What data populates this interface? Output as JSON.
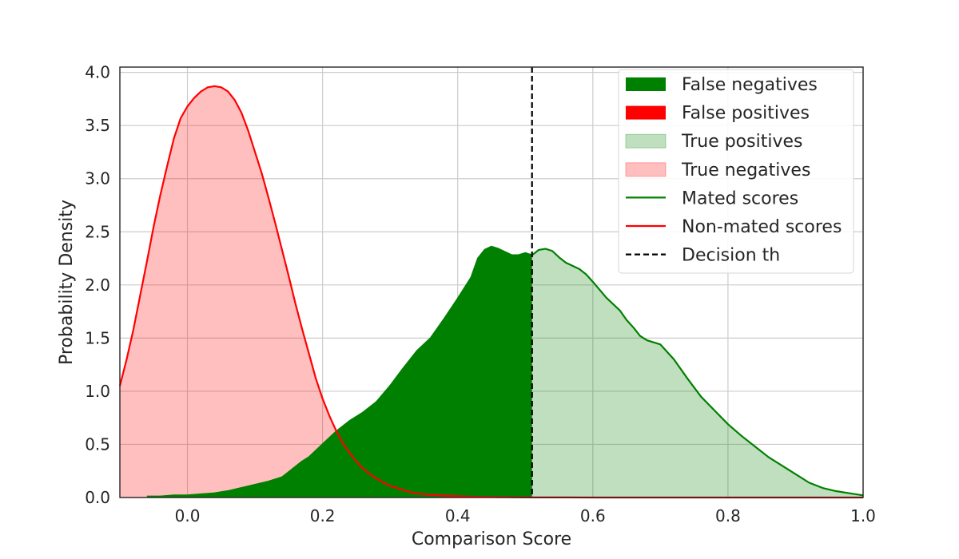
{
  "chart_data": {
    "type": "area",
    "title": "",
    "xlabel": "Comparison Score",
    "ylabel": "Probability Density",
    "xlim": [
      -0.1,
      1.0
    ],
    "ylim": [
      0.0,
      4.05
    ],
    "grid": true,
    "x_ticks": [
      0.0,
      0.2,
      0.4,
      0.6,
      0.8,
      1.0
    ],
    "x_tick_labels": [
      "0.0",
      "0.2",
      "0.4",
      "0.6",
      "0.8",
      "1.0"
    ],
    "y_ticks": [
      0.0,
      0.5,
      1.0,
      1.5,
      2.0,
      2.5,
      3.0,
      3.5,
      4.0
    ],
    "y_tick_labels": [
      "0.0",
      "0.5",
      "1.0",
      "1.5",
      "2.0",
      "2.5",
      "3.0",
      "3.5",
      "4.0"
    ],
    "threshold": 0.51,
    "legend_position": "top-right",
    "legend": [
      {
        "label": "False negatives",
        "kind": "patch",
        "color": "#008000",
        "alpha": 1.0
      },
      {
        "label": "False positives",
        "kind": "patch",
        "color": "#ff0000",
        "alpha": 1.0
      },
      {
        "label": "True positives",
        "kind": "patch",
        "color": "#008000",
        "alpha": 0.25
      },
      {
        "label": "True negatives",
        "kind": "patch",
        "color": "#ff0000",
        "alpha": 0.25
      },
      {
        "label": "Mated scores",
        "kind": "line",
        "color": "#008000",
        "dash": "solid"
      },
      {
        "label": "Non-mated scores",
        "kind": "line",
        "color": "#ff0000",
        "dash": "solid"
      },
      {
        "label": "Decision th",
        "kind": "line",
        "color": "#000000",
        "dash": "dashed"
      }
    ],
    "series": [
      {
        "name": "Mated scores",
        "color": "#008000",
        "x": [
          -0.06,
          -0.04,
          -0.02,
          0.0,
          0.02,
          0.04,
          0.06,
          0.08,
          0.1,
          0.12,
          0.14,
          0.15,
          0.16,
          0.17,
          0.18,
          0.19,
          0.2,
          0.22,
          0.24,
          0.26,
          0.28,
          0.3,
          0.32,
          0.34,
          0.36,
          0.38,
          0.4,
          0.42,
          0.43,
          0.44,
          0.45,
          0.46,
          0.47,
          0.48,
          0.49,
          0.5,
          0.51,
          0.52,
          0.53,
          0.54,
          0.55,
          0.56,
          0.57,
          0.58,
          0.59,
          0.6,
          0.62,
          0.64,
          0.65,
          0.66,
          0.67,
          0.68,
          0.7,
          0.72,
          0.74,
          0.76,
          0.78,
          0.8,
          0.82,
          0.84,
          0.86,
          0.88,
          0.9,
          0.92,
          0.94,
          0.96,
          0.98,
          1.0
        ],
        "y": [
          0.01,
          0.01,
          0.02,
          0.02,
          0.03,
          0.04,
          0.06,
          0.09,
          0.12,
          0.15,
          0.19,
          0.24,
          0.29,
          0.34,
          0.38,
          0.44,
          0.5,
          0.62,
          0.72,
          0.8,
          0.9,
          1.05,
          1.22,
          1.38,
          1.5,
          1.68,
          1.87,
          2.07,
          2.25,
          2.33,
          2.36,
          2.34,
          2.31,
          2.28,
          2.28,
          2.3,
          2.28,
          2.33,
          2.34,
          2.32,
          2.26,
          2.21,
          2.18,
          2.15,
          2.1,
          2.03,
          1.88,
          1.76,
          1.67,
          1.6,
          1.52,
          1.48,
          1.44,
          1.3,
          1.12,
          0.95,
          0.82,
          0.69,
          0.58,
          0.48,
          0.38,
          0.3,
          0.22,
          0.14,
          0.09,
          0.06,
          0.04,
          0.02
        ]
      },
      {
        "name": "Non-mated scores",
        "color": "#ff0000",
        "x": [
          -0.1,
          -0.09,
          -0.08,
          -0.07,
          -0.06,
          -0.05,
          -0.04,
          -0.03,
          -0.02,
          -0.01,
          0.0,
          0.01,
          0.02,
          0.03,
          0.04,
          0.05,
          0.06,
          0.07,
          0.08,
          0.09,
          0.1,
          0.11,
          0.12,
          0.13,
          0.14,
          0.15,
          0.16,
          0.17,
          0.18,
          0.19,
          0.2,
          0.21,
          0.22,
          0.23,
          0.24,
          0.25,
          0.26,
          0.27,
          0.28,
          0.29,
          0.3,
          0.31,
          0.32,
          0.33,
          0.34,
          0.35,
          0.36,
          0.38,
          0.4,
          0.42,
          0.44,
          0.46,
          0.48,
          0.5,
          0.52,
          0.56,
          0.6,
          0.7,
          0.8,
          0.9,
          1.0
        ],
        "y": [
          1.05,
          1.3,
          1.58,
          1.9,
          2.22,
          2.55,
          2.85,
          3.12,
          3.38,
          3.57,
          3.68,
          3.76,
          3.82,
          3.86,
          3.87,
          3.86,
          3.82,
          3.74,
          3.62,
          3.45,
          3.25,
          3.05,
          2.82,
          2.58,
          2.33,
          2.08,
          1.82,
          1.58,
          1.35,
          1.12,
          0.93,
          0.77,
          0.63,
          0.51,
          0.42,
          0.34,
          0.27,
          0.22,
          0.18,
          0.14,
          0.11,
          0.09,
          0.07,
          0.05,
          0.04,
          0.03,
          0.025,
          0.018,
          0.012,
          0.008,
          0.006,
          0.004,
          0.003,
          0.002,
          0.001,
          0.001,
          0.0,
          0.0,
          0.0,
          0.0,
          0.0
        ]
      }
    ]
  }
}
